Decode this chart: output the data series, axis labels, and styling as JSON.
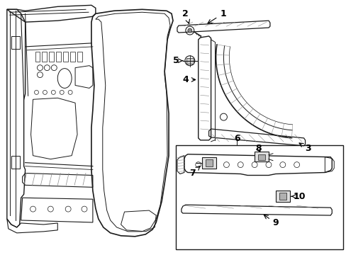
{
  "bg_color": "#ffffff",
  "line_color": "#1a1a1a",
  "gray_color": "#888888",
  "fig_width": 4.89,
  "fig_height": 3.6,
  "dpi": 100
}
